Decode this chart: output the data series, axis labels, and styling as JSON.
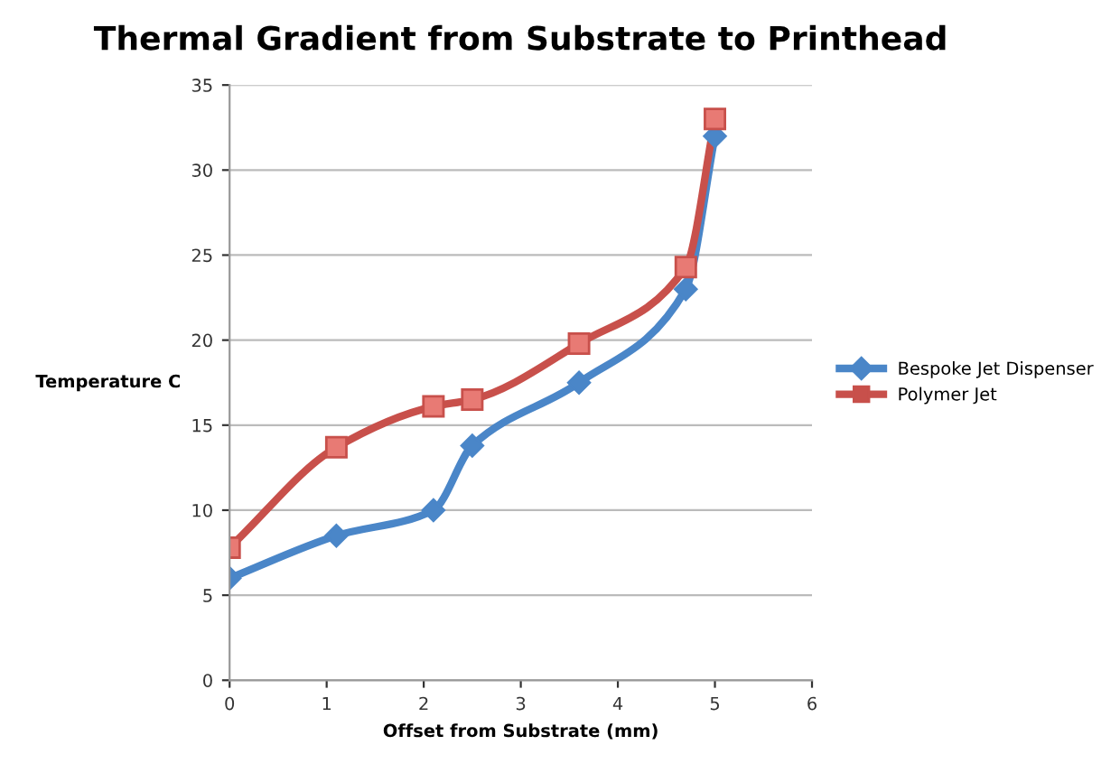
{
  "chart_data": {
    "type": "line",
    "title": "Thermal Gradient from Substrate to Printhead",
    "xlabel": "Offset from Substrate (mm)",
    "ylabel": "Temperature C",
    "series": [
      {
        "name": "Bespoke Jet Dispenser",
        "color": "#4a86c8",
        "marker": "diamond",
        "x": [
          0,
          1.1,
          2.1,
          2.5,
          3.6,
          4.7,
          5
        ],
        "values": [
          6,
          8.5,
          10,
          13.8,
          17.5,
          23,
          32
        ]
      },
      {
        "name": "Polymer Jet",
        "color": "#c8504b",
        "marker": "square",
        "x": [
          0,
          1.1,
          2.1,
          2.5,
          3.6,
          4.7,
          5
        ],
        "values": [
          7.8,
          13.7,
          16.1,
          16.5,
          19.8,
          24.3,
          33
        ]
      }
    ],
    "xlim": [
      0,
      6
    ],
    "xticks": [
      0,
      1,
      2,
      3,
      4,
      5,
      6
    ],
    "ylim": [
      0,
      35
    ],
    "yticks": [
      0,
      5,
      10,
      15,
      20,
      25,
      30,
      35
    ],
    "grid": "y",
    "legend": "right",
    "line_style": "solid"
  }
}
